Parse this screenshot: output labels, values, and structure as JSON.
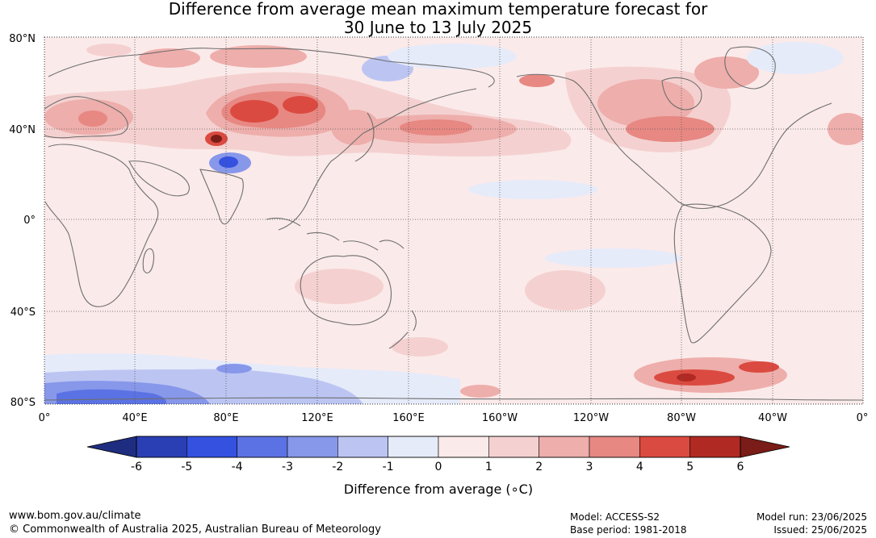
{
  "title_line1": "Difference from average mean maximum temperature forecast for",
  "title_line2": "30 June to 13 July 2025",
  "lat_labels": [
    "80°N",
    "40°N",
    "0°",
    "40°S",
    "80°S"
  ],
  "lon_labels": [
    "0°",
    "40°E",
    "80°E",
    "120°E",
    "160°E",
    "160°W",
    "120°W",
    "80°W",
    "40°W",
    "0°"
  ],
  "colorbar": {
    "label": "Difference from average (∘C)",
    "ticks": [
      "-6",
      "-5",
      "-4",
      "-3",
      "-2",
      "-1",
      "0",
      "1",
      "2",
      "3",
      "4",
      "5",
      "6"
    ],
    "colors": {
      "below_min": "#1f2d80",
      "bins": [
        "#2a3fb4",
        "#3451e0",
        "#5b72e4",
        "#8797ea",
        "#bcc5f2",
        "#e6ebfa",
        "#fbeaea",
        "#f4d1d0",
        "#eeaeab",
        "#e78883",
        "#db4a40",
        "#b02a23"
      ],
      "above_max": "#7a1c17"
    }
  },
  "footer": {
    "website": "www.bom.gov.au/climate",
    "copyright": "© Commonwealth of Australia 2025, Australian Bureau of Meteorology",
    "model": "Model: ACCESS-S2",
    "base_period": "Base period: 1981-2018",
    "model_run": "Model run: 23/06/2025",
    "issued": "Issued: 25/06/2025"
  }
}
